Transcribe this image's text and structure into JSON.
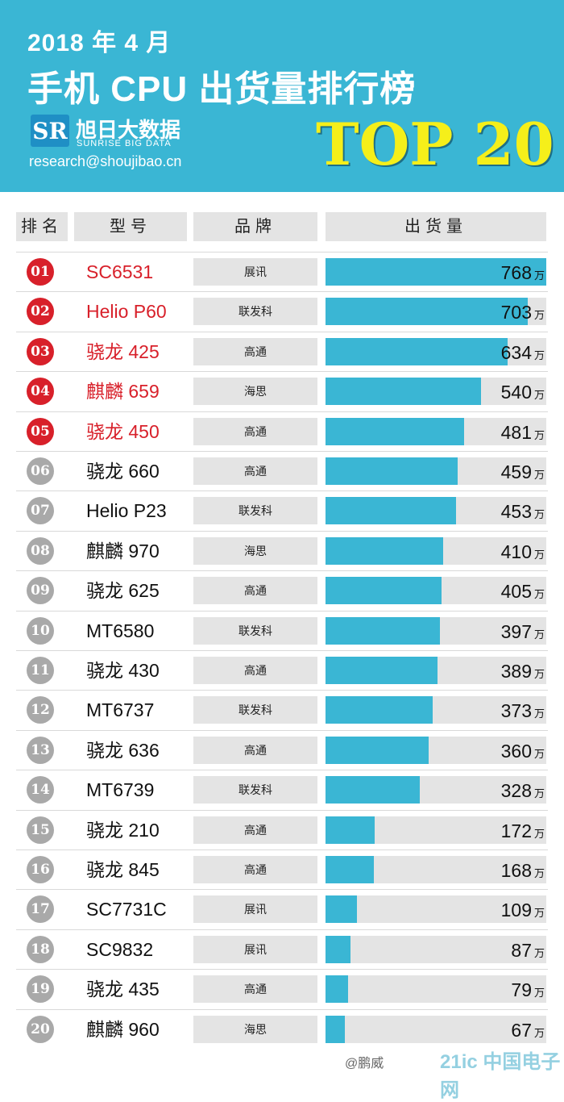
{
  "header": {
    "date_line": "2018 年 4 月",
    "title": "手机 CPU 出货量排行榜",
    "brand_logo_letters": "SR",
    "brand_name": "旭日大数据",
    "brand_name_en": "SUNRISE BIG DATA",
    "email": "research@shoujibao.cn",
    "badge": "TOP 20"
  },
  "columns": {
    "rank": "排名",
    "model": "型号",
    "brand": "品牌",
    "shipments": "出货量"
  },
  "unit": "万",
  "watermarks": {
    "weibo": "@鹏威",
    "site": "21ic 中国电子网"
  },
  "colors": {
    "header_bg": "#3ab6d4",
    "bar": "#3ab6d4",
    "top5": "#d8202a",
    "others": "#a9a9a9",
    "badge": "#f5ef1a"
  },
  "chart_data": {
    "type": "bar",
    "title": "手机 CPU 出货量排行榜",
    "orientation": "horizontal",
    "unit": "万",
    "rows": [
      {
        "rank": "01",
        "model": "SC6531",
        "brand": "展讯",
        "value": 768
      },
      {
        "rank": "02",
        "model": "Helio P60",
        "brand": "联发科",
        "value": 703
      },
      {
        "rank": "03",
        "model": "骁龙 425",
        "brand": "高通",
        "value": 634
      },
      {
        "rank": "04",
        "model": "麒麟 659",
        "brand": "海思",
        "value": 540
      },
      {
        "rank": "05",
        "model": "骁龙 450",
        "brand": "高通",
        "value": 481
      },
      {
        "rank": "06",
        "model": "骁龙 660",
        "brand": "高通",
        "value": 459
      },
      {
        "rank": "07",
        "model": "Helio P23",
        "brand": "联发科",
        "value": 453
      },
      {
        "rank": "08",
        "model": "麒麟 970",
        "brand": "海思",
        "value": 410
      },
      {
        "rank": "09",
        "model": "骁龙 625",
        "brand": "高通",
        "value": 405
      },
      {
        "rank": "10",
        "model": "MT6580",
        "brand": "联发科",
        "value": 397
      },
      {
        "rank": "11",
        "model": "骁龙 430",
        "brand": "高通",
        "value": 389
      },
      {
        "rank": "12",
        "model": "MT6737",
        "brand": "联发科",
        "value": 373
      },
      {
        "rank": "13",
        "model": "骁龙 636",
        "brand": "高通",
        "value": 360
      },
      {
        "rank": "14",
        "model": "MT6739",
        "brand": "联发科",
        "value": 328
      },
      {
        "rank": "15",
        "model": "骁龙 210",
        "brand": "高通",
        "value": 172
      },
      {
        "rank": "16",
        "model": "骁龙 845",
        "brand": "高通",
        "value": 168
      },
      {
        "rank": "17",
        "model": "SC7731C",
        "brand": "展讯",
        "value": 109
      },
      {
        "rank": "18",
        "model": "SC9832",
        "brand": "展讯",
        "value": 87
      },
      {
        "rank": "19",
        "model": "骁龙 435",
        "brand": "高通",
        "value": 79
      },
      {
        "rank": "20",
        "model": "麒麟 960",
        "brand": "海思",
        "value": 67
      }
    ],
    "xlim": [
      0,
      768
    ]
  }
}
